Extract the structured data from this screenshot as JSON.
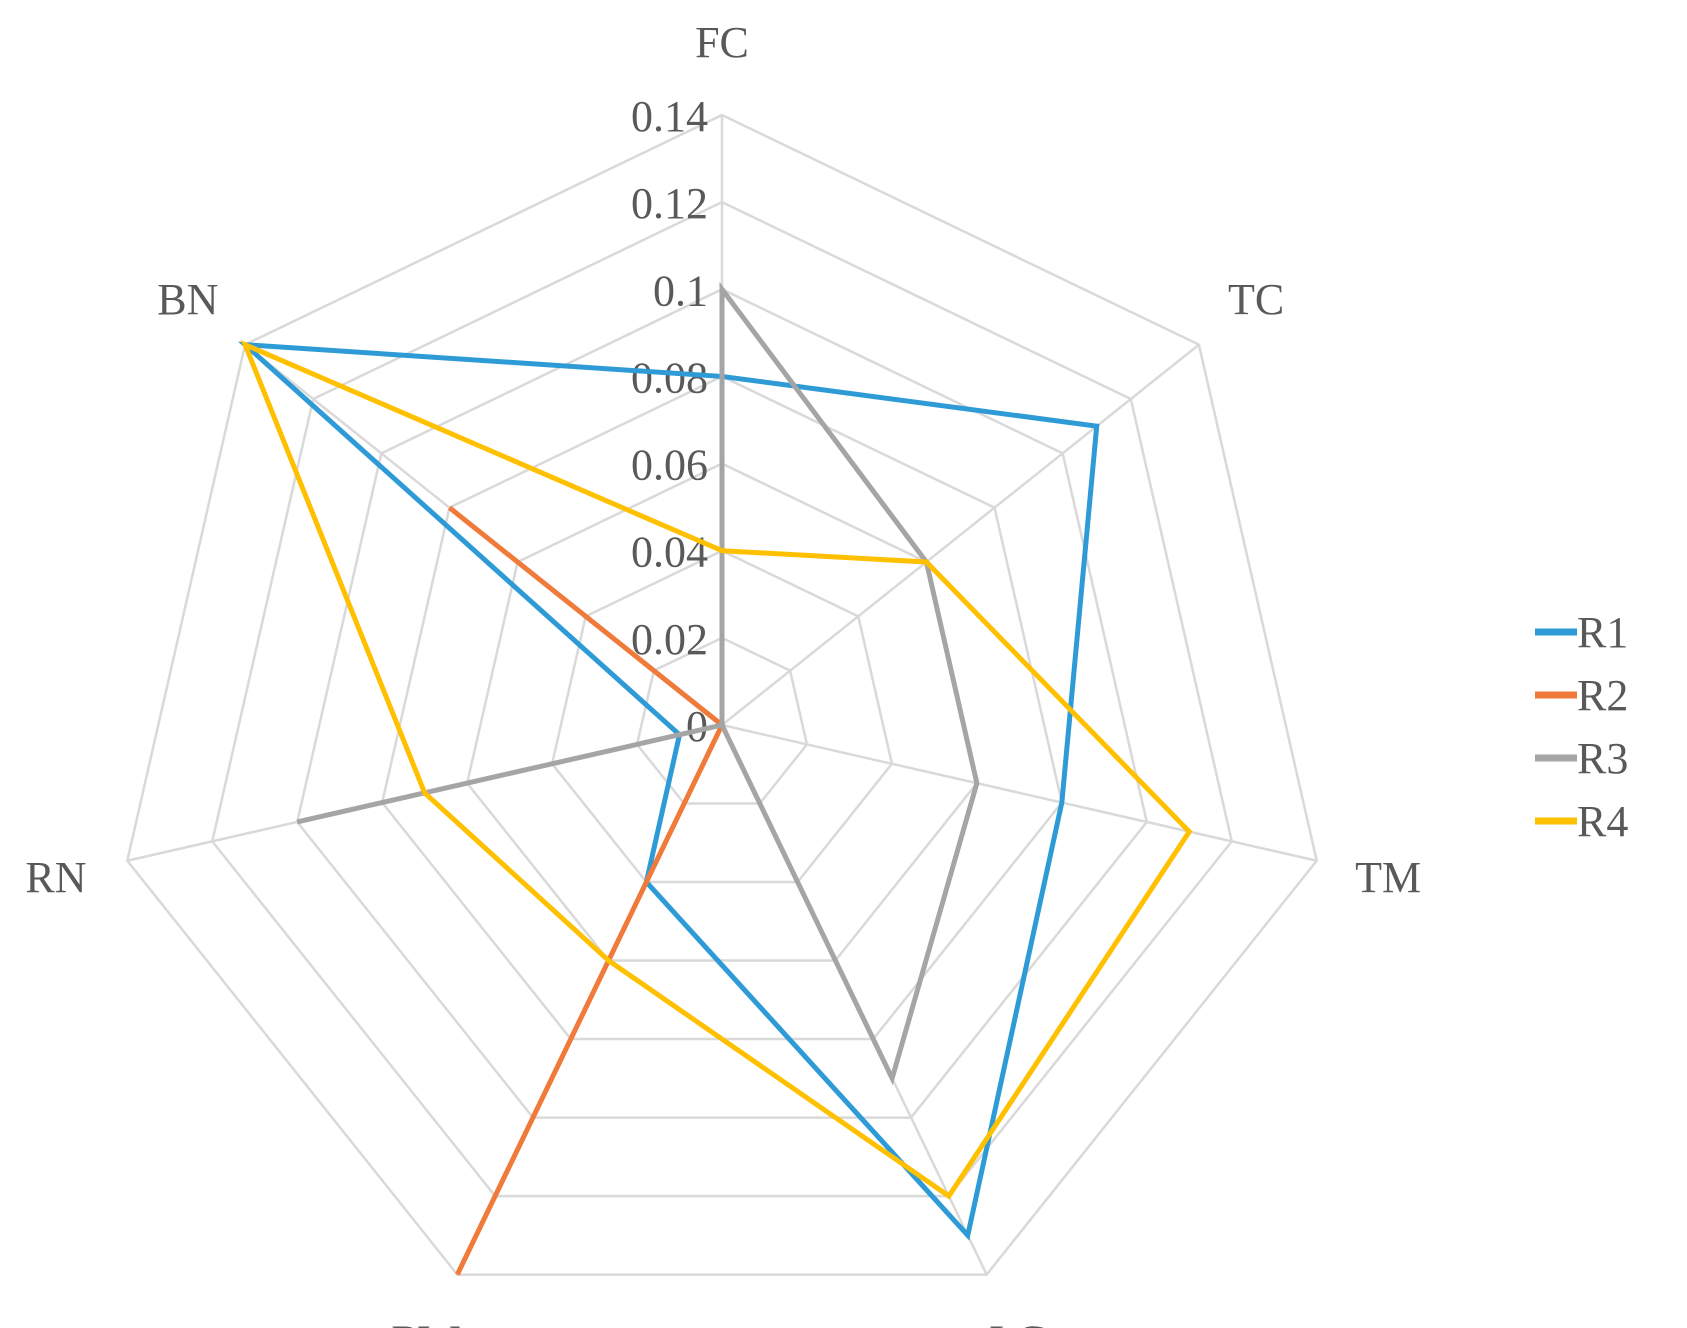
{
  "chart_data": {
    "type": "radar",
    "categories": [
      "FC",
      "TC",
      "TM",
      "LG",
      "RW",
      "RN",
      "BN"
    ],
    "ticks": [
      "0",
      "0.02",
      "0.04",
      "0.06",
      "0.08",
      "0.1",
      "0.12",
      "0.14"
    ],
    "rlim": [
      0,
      0.14
    ],
    "grid": true,
    "legend_position": "right",
    "series": [
      {
        "name": "R1",
        "color": "#2e9bd6",
        "values": [
          0.08,
          0.11,
          0.08,
          0.13,
          0.04,
          0.01,
          0.14
        ]
      },
      {
        "name": "R2",
        "color": "#f07a3a",
        "values": [
          0.0,
          0.0,
          0.0,
          0.0,
          0.14,
          0.0,
          0.08
        ]
      },
      {
        "name": "R3",
        "color": "#a5a5a5",
        "values": [
          0.1,
          0.06,
          0.06,
          0.09,
          0.0,
          0.1,
          0.0
        ]
      },
      {
        "name": "R4",
        "color": "#ffc000",
        "values": [
          0.04,
          0.06,
          0.11,
          0.12,
          0.06,
          0.07,
          0.14
        ]
      }
    ]
  }
}
